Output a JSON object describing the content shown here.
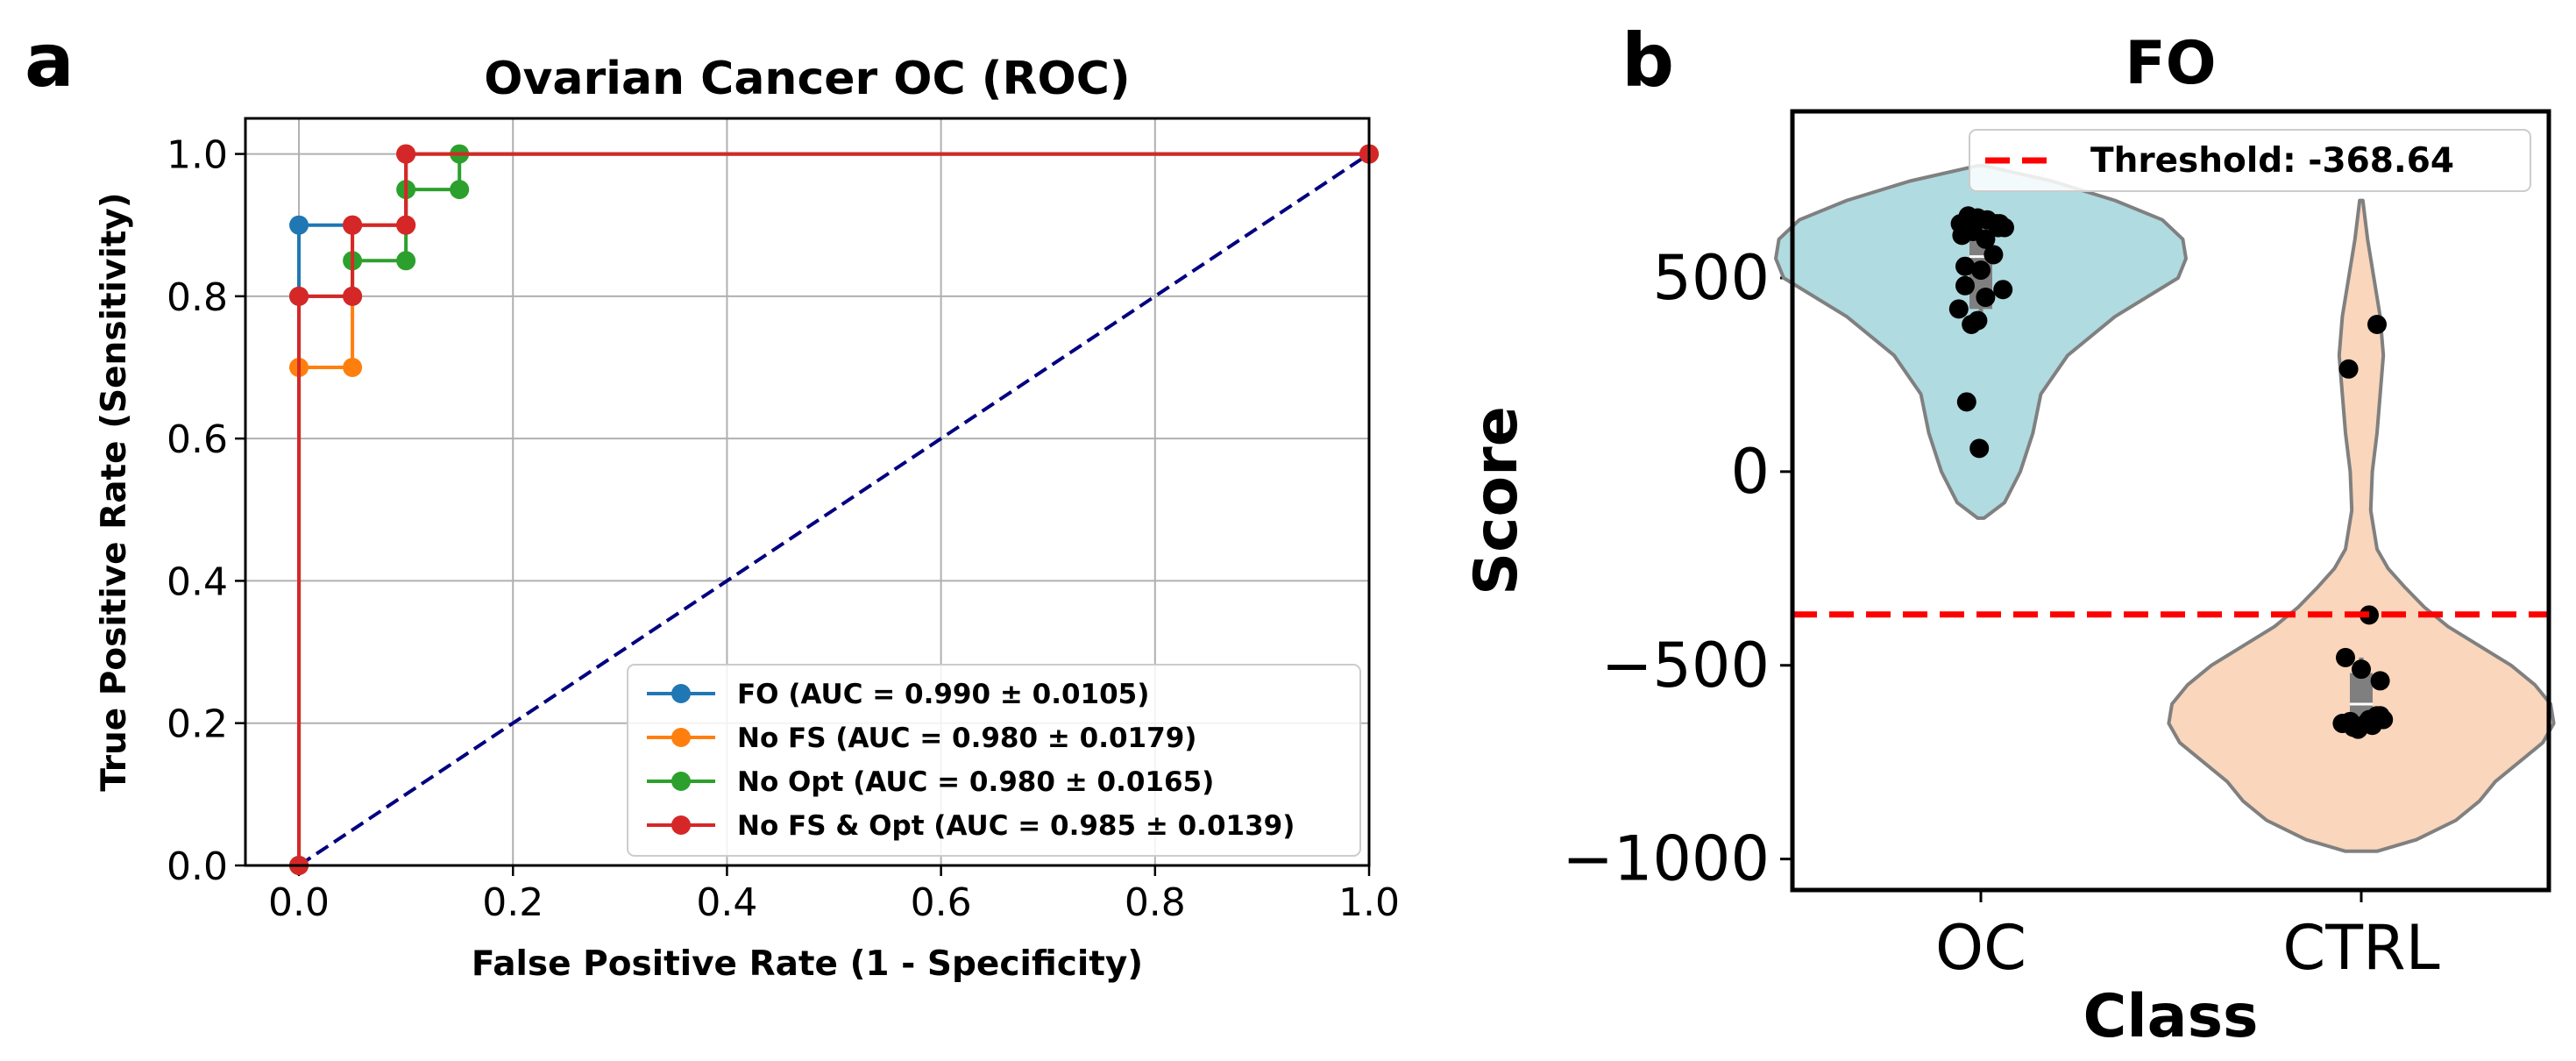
{
  "panels": {
    "a": {
      "letter": "a"
    },
    "b": {
      "letter": "b"
    }
  },
  "chart_data": [
    {
      "type": "line",
      "title": "Ovarian Cancer OC (ROC)",
      "xlabel": "False Positive Rate (1 - Specificity)",
      "ylabel": "True Positive Rate (Sensitivity)",
      "xlim": [
        -0.05,
        1.0
      ],
      "ylim": [
        0.0,
        1.05
      ],
      "xticks": [
        0.0,
        0.2,
        0.4,
        0.6,
        0.8,
        1.0
      ],
      "xtick_labels": [
        "0.0",
        "0.2",
        "0.4",
        "0.6",
        "0.8",
        "1.0"
      ],
      "yticks": [
        0.0,
        0.2,
        0.4,
        0.6,
        0.8,
        1.0
      ],
      "ytick_labels": [
        "0.0",
        "0.2",
        "0.4",
        "0.6",
        "0.8",
        "1.0"
      ],
      "grid": true,
      "legend_position": "lower-right",
      "series": [
        {
          "name": "FO (AUC = 0.990 ± 0.0105)",
          "color": "#1f77b4",
          "x": [
            0.0,
            0.0,
            0.0,
            0.05,
            0.05,
            0.1,
            0.1,
            1.0
          ],
          "y": [
            0.0,
            0.8,
            0.9,
            0.9,
            0.9,
            0.9,
            1.0,
            1.0
          ]
        },
        {
          "name": "No FS (AUC = 0.980 ± 0.0179)",
          "color": "#ff7f0e",
          "x": [
            0.0,
            0.0,
            0.05,
            0.05,
            0.05,
            0.1,
            0.1,
            1.0
          ],
          "y": [
            0.0,
            0.7,
            0.7,
            0.8,
            0.9,
            0.9,
            1.0,
            1.0
          ]
        },
        {
          "name": "No Opt (AUC = 0.980 ± 0.0165)",
          "color": "#2ca02c",
          "x": [
            0.0,
            0.0,
            0.05,
            0.05,
            0.1,
            0.1,
            0.15,
            0.15,
            1.0
          ],
          "y": [
            0.0,
            0.8,
            0.8,
            0.85,
            0.85,
            0.95,
            0.95,
            1.0,
            1.0
          ]
        },
        {
          "name": "No FS & Opt (AUC = 0.985 ± 0.0139)",
          "color": "#d62728",
          "x": [
            0.0,
            0.0,
            0.05,
            0.05,
            0.1,
            0.1,
            1.0
          ],
          "y": [
            0.0,
            0.8,
            0.8,
            0.9,
            0.9,
            1.0,
            1.0
          ]
        }
      ],
      "reference_line": {
        "x": [
          0.0,
          1.0
        ],
        "y": [
          0.0,
          1.0
        ],
        "color": "#000080",
        "style": "dashed"
      }
    },
    {
      "type": "violin",
      "title": "FO",
      "xlabel": "Class",
      "ylabel": "Score",
      "categories": [
        "OC",
        "CTRL"
      ],
      "colors": [
        "#b0dbe0",
        "#f9d6bc"
      ],
      "ylim": [
        -1080,
        930
      ],
      "yticks": [
        500,
        0,
        -500,
        -1000
      ],
      "ytick_labels": [
        "500",
        "0",
        "−500",
        "−1000"
      ],
      "threshold": {
        "value": -368.64,
        "label": "Threshold: -368.64",
        "color": "#ff0000"
      },
      "legend_position": "upper-right",
      "box": [
        {
          "q1": 420,
          "median": 555,
          "q3": 650,
          "whisker_low": 380,
          "whisker_high": 665
        },
        {
          "q1": -650,
          "median": -600,
          "q3": -520,
          "whisker_low": -665,
          "whisker_high": -480
        }
      ],
      "violin_profile": [
        {
          "min": -120,
          "max": 790,
          "y": [
            -120,
            -80,
            0,
            100,
            200,
            300,
            400,
            500,
            550,
            600,
            650,
            700,
            750,
            790
          ],
          "halfwidth": [
            0.02,
            0.15,
            0.25,
            0.33,
            0.38,
            0.55,
            0.85,
            1.25,
            1.3,
            1.28,
            1.15,
            0.85,
            0.45,
            0.02
          ]
        },
        {
          "min": -980,
          "max": 700,
          "y": [
            -980,
            -950,
            -900,
            -850,
            -800,
            -750,
            -700,
            -650,
            -600,
            -550,
            -500,
            -450,
            -400,
            -350,
            -300,
            -250,
            -200,
            -100,
            0,
            100,
            200,
            300,
            400,
            500,
            600,
            700
          ],
          "halfwidth": [
            0.1,
            0.35,
            0.6,
            0.75,
            0.85,
            1.0,
            1.15,
            1.22,
            1.2,
            1.1,
            0.95,
            0.75,
            0.55,
            0.4,
            0.28,
            0.17,
            0.1,
            0.06,
            0.07,
            0.1,
            0.12,
            0.14,
            0.12,
            0.08,
            0.04,
            0.01
          ]
        }
      ],
      "points": [
        {
          "x": [
            -0.13,
            -0.08,
            -0.02,
            0.04,
            0.1,
            0.15,
            -0.12,
            -0.05,
            0.03,
            0.12,
            -0.1,
            0.0,
            0.08,
            -0.14,
            -0.06,
            0.14,
            -0.02,
            0.03,
            -0.1,
            0.11,
            -0.01,
            -0.09
          ],
          "y": [
            640,
            660,
            655,
            650,
            640,
            630,
            610,
            620,
            600,
            640,
            530,
            520,
            560,
            420,
            380,
            470,
            390,
            450,
            480,
            630,
            60,
            180
          ]
        },
        {
          "x": [
            -0.08,
            0.1,
            0.05,
            -0.1,
            0.12,
            0.0,
            0.05,
            0.1,
            -0.12,
            -0.05,
            0.03,
            0.14,
            -0.02,
            0.07,
            -0.07,
            0.12
          ],
          "y": [
            265,
            380,
            -370,
            -480,
            -540,
            -510,
            -640,
            -630,
            -650,
            -660,
            -650,
            -640,
            -665,
            -655,
            -645,
            -630
          ]
        }
      ]
    }
  ]
}
